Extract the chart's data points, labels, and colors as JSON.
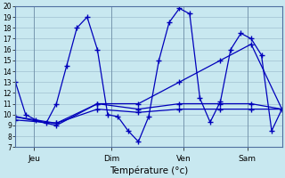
{
  "background_color": "#c8e8f0",
  "plot_bg_color": "#c8e8f0",
  "grid_color": "#a0c0d0",
  "line_color": "#0000bb",
  "xlabel": "Température (°c)",
  "xtick_labels": [
    "Jeu",
    "Dim",
    "Ven",
    "Sam"
  ],
  "ylim": [
    7,
    20
  ],
  "ytick_min": 7,
  "ytick_max": 20,
  "n_points": 27,
  "lines": [
    {
      "x": [
        0,
        1,
        2,
        3,
        4,
        5,
        6,
        7,
        8,
        9,
        10,
        11,
        12,
        13,
        14,
        15,
        16,
        17,
        18,
        19,
        20,
        21,
        22,
        23,
        24,
        25,
        26
      ],
      "y": [
        13,
        10,
        9.5,
        9.2,
        11,
        14.5,
        18,
        19,
        16,
        10,
        9.8,
        8.5,
        7.5,
        9.8,
        15,
        18.5,
        19.8,
        19.3,
        11.5,
        9.3,
        11.2,
        16,
        17.5,
        17,
        15.5,
        8.5,
        10.5
      ]
    },
    {
      "x": [
        0,
        4,
        8,
        12,
        16,
        20,
        23,
        26
      ],
      "y": [
        9.5,
        9.2,
        11.0,
        11.0,
        13.0,
        15.0,
        16.5,
        10.5
      ]
    },
    {
      "x": [
        0,
        4,
        8,
        12,
        16,
        20,
        23,
        26
      ],
      "y": [
        9.8,
        9.0,
        11.0,
        10.5,
        11.0,
        11.0,
        11.0,
        10.5
      ]
    },
    {
      "x": [
        0,
        4,
        8,
        12,
        16,
        20,
        23,
        26
      ],
      "y": [
        9.8,
        9.2,
        10.5,
        10.2,
        10.5,
        10.5,
        10.5,
        10.5
      ]
    }
  ]
}
